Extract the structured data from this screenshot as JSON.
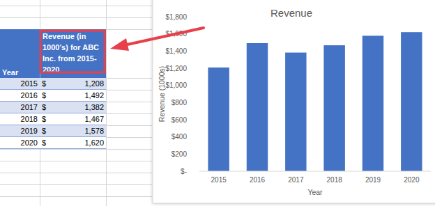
{
  "table": {
    "header": [
      "Year",
      "Revenue (in 1000's) for ABC Inc. from 2015-2020"
    ],
    "rows": [
      [
        "2015",
        "$",
        "1,208"
      ],
      [
        "2016",
        "$",
        "1,492"
      ],
      [
        "2017",
        "$",
        "1,382"
      ],
      [
        "2018",
        "$",
        "1,467"
      ],
      [
        "2019",
        "$",
        "1,578"
      ],
      [
        "2020",
        "$",
        "1,620"
      ]
    ]
  },
  "chart_data": {
    "type": "bar",
    "title": "Revenue",
    "x_label": "Year",
    "y_label": "Revenue (1000s)",
    "categories": [
      "2015",
      "2016",
      "2017",
      "2018",
      "2019",
      "2020"
    ],
    "values": [
      1208,
      1492,
      1382,
      1467,
      1578,
      1620
    ],
    "color": "#4472c4",
    "ylim": [
      0,
      1800
    ],
    "yticks": [
      {
        "value": 0,
        "label": "$-"
      },
      {
        "value": 200,
        "label": "$200"
      },
      {
        "value": 400,
        "label": "$400"
      },
      {
        "value": 600,
        "label": "$600"
      },
      {
        "value": 800,
        "label": "$800"
      },
      {
        "value": 1000,
        "label": "$1,000"
      },
      {
        "value": 1200,
        "label": "$1,200"
      },
      {
        "value": 1400,
        "label": "$1,400"
      },
      {
        "value": 1600,
        "label": "$1,600"
      },
      {
        "value": 1800,
        "label": "$1,800"
      }
    ],
    "grid": false
  }
}
